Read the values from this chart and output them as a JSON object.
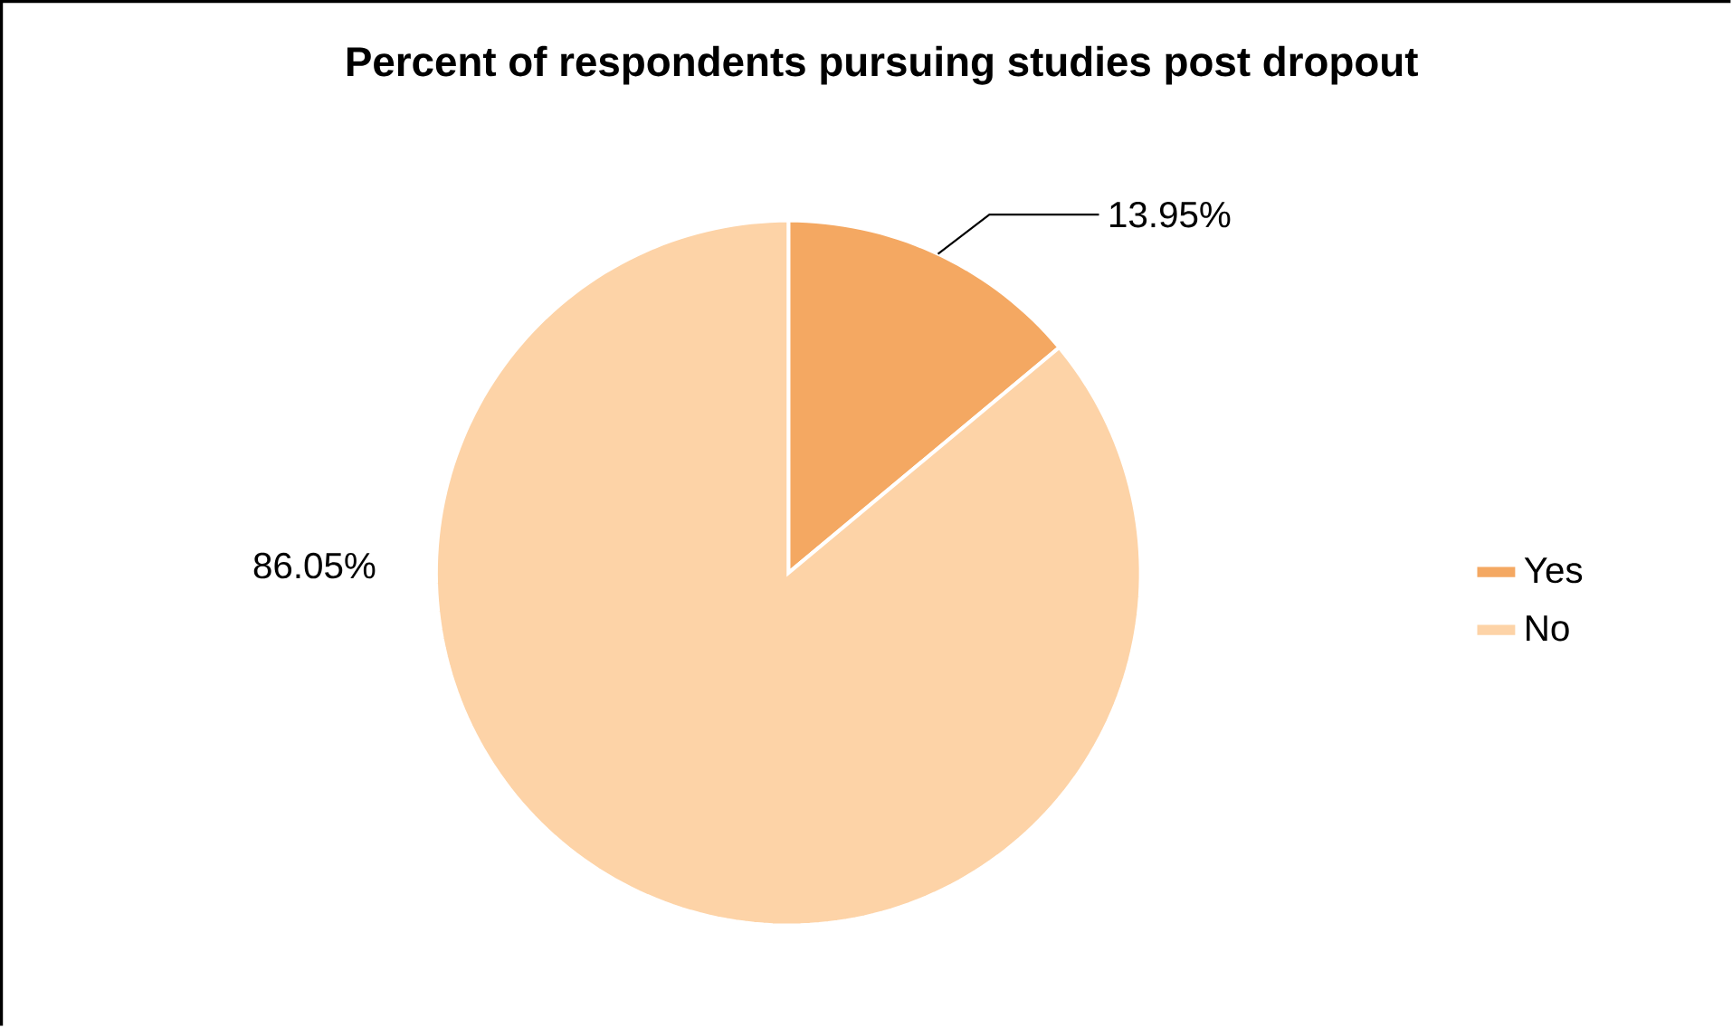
{
  "chart_data": {
    "type": "pie",
    "title": "Percent of respondents pursuing studies post dropout",
    "categories": [
      "Yes",
      "No"
    ],
    "values": [
      13.95,
      86.05
    ],
    "value_labels": [
      "13.95%",
      "86.05%"
    ],
    "colors": [
      "#f4a862",
      "#fdd3a7"
    ],
    "legend": "right"
  }
}
